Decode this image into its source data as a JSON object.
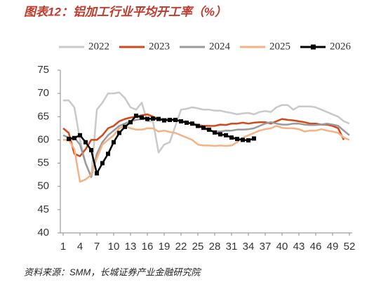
{
  "chart_data": {
    "type": "line",
    "title": "图表12：铝加工行业平均开工率（%）",
    "source": "资料来源：SMM，长城证券产业金融研究院",
    "x": [
      1,
      2,
      3,
      4,
      5,
      6,
      7,
      8,
      9,
      10,
      11,
      12,
      13,
      14,
      15,
      16,
      17,
      18,
      19,
      20,
      21,
      22,
      23,
      24,
      25,
      26,
      27,
      28,
      29,
      30,
      31,
      32,
      33,
      34,
      35,
      36,
      37,
      38,
      39,
      40,
      41,
      42,
      43,
      44,
      45,
      46,
      47,
      48,
      49,
      50,
      51,
      52
    ],
    "xlim": [
      0.5,
      52.5
    ],
    "xticks": [
      1,
      4,
      7,
      10,
      13,
      16,
      19,
      22,
      25,
      28,
      31,
      34,
      37,
      40,
      43,
      46,
      49,
      52
    ],
    "ylim": [
      40,
      75
    ],
    "yticks": [
      40,
      45,
      50,
      55,
      60,
      65,
      70,
      75
    ],
    "legend": "top",
    "series": [
      {
        "name": "2022",
        "color": "#c9c9c9",
        "values": [
          68.5,
          68.5,
          67,
          60,
          55,
          52,
          66.5,
          68,
          70,
          70,
          70.2,
          69,
          67,
          66.5,
          68,
          64,
          64,
          57.3,
          59,
          59.5,
          63,
          66.5,
          66.7,
          67,
          66.8,
          66.5,
          66.5,
          66.3,
          66.3,
          66,
          65.8,
          65.5,
          65.7,
          65.8,
          65.5,
          66,
          66.2,
          66,
          67,
          67.5,
          67.5,
          66.5,
          67.2,
          67.2,
          67.2,
          67,
          66.5,
          66,
          65.5,
          65,
          64,
          63.5
        ]
      },
      {
        "name": "2023",
        "color": "#d6461b",
        "values": [
          62.5,
          61.5,
          57,
          56.5,
          58,
          60,
          60,
          61,
          62.5,
          63,
          64,
          64.5,
          64.8,
          65,
          65.3,
          65.5,
          65,
          64.5,
          64.3,
          64.3,
          64.2,
          64,
          63.8,
          63.5,
          63.2,
          63,
          63,
          63,
          63.3,
          63.2,
          63.5,
          63.5,
          63.7,
          63.5,
          63.7,
          63.8,
          63.8,
          63.5,
          64,
          64.5,
          64.3,
          64.2,
          64,
          63.8,
          63.5,
          63.5,
          63.3,
          63.3,
          63,
          62.5,
          60,
          null
        ]
      },
      {
        "name": "2024",
        "color": "#9a9a9a",
        "values": [
          61,
          60.5,
          60.5,
          59,
          55,
          52,
          57,
          59.5,
          61,
          62,
          63,
          63.5,
          64,
          64.3,
          64.5,
          64.5,
          64.5,
          64.5,
          64.5,
          64.5,
          64.3,
          64,
          63.8,
          63.5,
          63,
          62.5,
          62,
          61.8,
          61.8,
          62,
          62,
          62.2,
          62.2,
          62.3,
          62.5,
          63,
          63.5,
          63.8,
          63.5,
          63.3,
          63.3,
          63.5,
          63.5,
          63.3,
          63.2,
          63.2,
          63.3,
          63.5,
          63.3,
          63,
          62,
          61
        ]
      },
      {
        "name": "2025",
        "color": "#f4b183",
        "values": [
          60,
          60,
          58,
          51,
          51.5,
          52.5,
          56,
          59,
          60,
          61,
          62.5,
          63,
          62.5,
          62.2,
          62.2,
          62.5,
          62.5,
          61.8,
          62,
          61.7,
          61.5,
          61,
          60.5,
          60,
          59,
          58.8,
          58.8,
          58.7,
          58.8,
          58.7,
          58.8,
          59.5,
          60.5,
          61,
          61.5,
          62,
          62.3,
          62.5,
          63,
          62.6,
          62.5,
          62.5,
          62.3,
          61.8,
          62,
          62,
          62.3,
          62,
          61.8,
          61.5,
          60.5,
          60
        ]
      },
      {
        "name": "2026",
        "color": "#000000",
        "marker": "square",
        "values": [
          null,
          60.2,
          60.4,
          61,
          59.5,
          57.8,
          52.8,
          55,
          57,
          59.5,
          61.5,
          62.8,
          63.8,
          65.2,
          64.8,
          64.5,
          64.6,
          64.5,
          64.2,
          64.3,
          64.3,
          64,
          63.7,
          63.5,
          63,
          62.6,
          62.2,
          61.6,
          61.2,
          61,
          60.5,
          60.2,
          60,
          59.9,
          60.3,
          null,
          null,
          null,
          null,
          null,
          null,
          null,
          null,
          null,
          null,
          null,
          null,
          null,
          null,
          null,
          null,
          null
        ]
      }
    ]
  }
}
